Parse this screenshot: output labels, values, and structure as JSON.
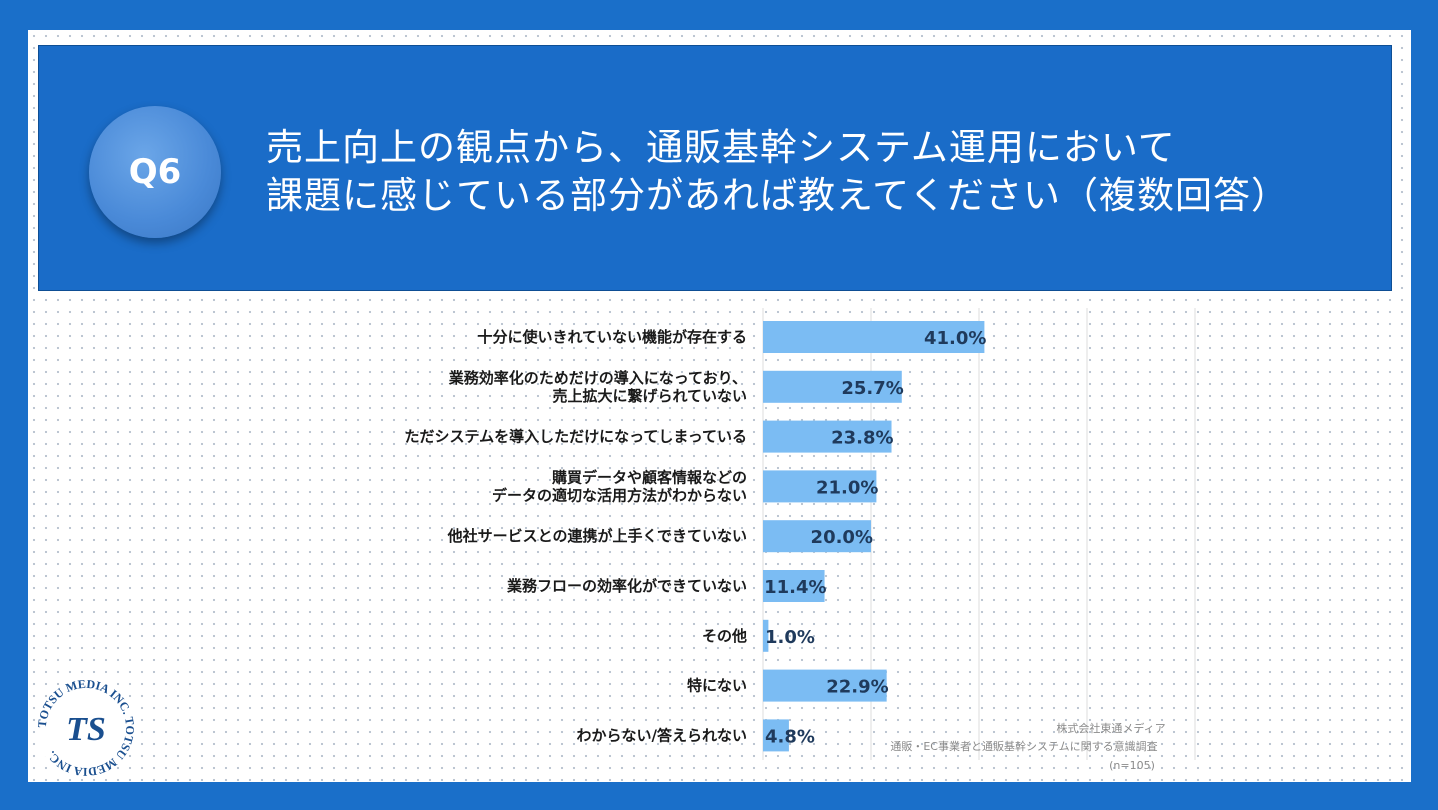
{
  "header": {
    "badge": "Q6",
    "title_lines": [
      "売上向上の観点から、通販基幹システム運用において",
      "課題に感じている部分があれば教えてください（複数回答）"
    ]
  },
  "colors": {
    "background": "#1a6fc9",
    "banner": "#1a6cc8",
    "bar": "#7bbcf3",
    "bar_label": "#1f3a5c"
  },
  "chart_data": {
    "type": "bar",
    "orientation": "horizontal",
    "xlim": [
      0,
      80
    ],
    "grid": true,
    "categories": [
      [
        "十分に使いきれていない機能が存在する"
      ],
      [
        "業務効率化のためだけの導入になっており、",
        "売上拡大に繋げられていない"
      ],
      [
        "ただシステムを導入しただけになってしまっている"
      ],
      [
        "購買データや顧客情報などの",
        "データの適切な活用方法がわからない"
      ],
      [
        "他社サービスとの連携が上手くできていない"
      ],
      [
        "業務フローの効率化ができていない"
      ],
      [
        "その他"
      ],
      [
        "特にない"
      ],
      [
        "わからない/答えられない"
      ]
    ],
    "values": [
      41.0,
      25.7,
      23.8,
      21.0,
      20.0,
      11.4,
      1.0,
      22.9,
      4.8
    ],
    "value_labels": [
      "41.0%",
      "25.7%",
      "23.8%",
      "21.0%",
      "20.0%",
      "11.4%",
      "1.0%",
      "22.9%",
      "4.8%"
    ]
  },
  "source": {
    "company": "株式会社東通メディア",
    "survey": "通販・EC事業者と通販基幹システムに関する意識調査",
    "sample": "(n=105)"
  },
  "logo": {
    "text_ring": "TOTSU MEDIA INC. TOTSU MEDIA INC.",
    "mark": "TS"
  }
}
